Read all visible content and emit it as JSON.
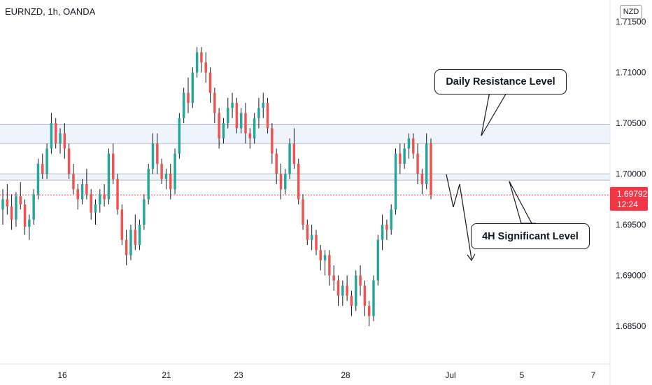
{
  "header": {
    "title": "EURNZD, 1h, OANDA",
    "currency": "NZD"
  },
  "last_price": {
    "value": "1.69792",
    "countdown": "12:24"
  },
  "annotations": {
    "daily_label": "Daily Resistance Level",
    "h4_label": "4H Significant Level"
  },
  "colors": {
    "up": "#26a69a",
    "down": "#ef5350",
    "wick": "#131722",
    "zone_fill": "#eef4fb",
    "zone_line": "#b2b5be",
    "last_price": "#f23645"
  },
  "chart_data": {
    "type": "candlestick",
    "symbol": "EURNZD",
    "timeframe": "1h",
    "y_axis": {
      "ticks": [
        "1.71500",
        "1.71000",
        "1.70500",
        "1.70000",
        "1.69500",
        "1.69000",
        "1.68500"
      ],
      "range": [
        1.681,
        1.717
      ]
    },
    "x_axis": {
      "ticks": [
        "16",
        "21",
        "23",
        "28",
        "Jul",
        "5",
        "7"
      ]
    },
    "zones": [
      {
        "name": "Daily Resistance Level",
        "top": 1.7049,
        "bottom": 1.703
      },
      {
        "name": "4H Significant Level",
        "top": 1.7,
        "bottom": 1.6994
      }
    ],
    "last_price": 1.69792,
    "candles": [
      [
        1.6965,
        1.6985,
        1.695,
        1.6975
      ],
      [
        1.6975,
        1.699,
        1.696,
        1.6968
      ],
      [
        1.6968,
        1.698,
        1.6945,
        1.6955
      ],
      [
        1.6955,
        1.6982,
        1.6948,
        1.6978
      ],
      [
        1.6978,
        1.6992,
        1.6965,
        1.697
      ],
      [
        1.697,
        1.6975,
        1.694,
        1.6948
      ],
      [
        1.6948,
        1.696,
        1.6935,
        1.6955
      ],
      [
        1.6955,
        1.6985,
        1.695,
        1.698
      ],
      [
        1.698,
        1.7015,
        1.6975,
        1.701
      ],
      [
        1.701,
        1.702,
        1.6995,
        1.7
      ],
      [
        1.7,
        1.703,
        1.6995,
        1.7025
      ],
      [
        1.7025,
        1.706,
        1.702,
        1.705
      ],
      [
        1.705,
        1.7055,
        1.7025,
        1.703
      ],
      [
        1.703,
        1.7045,
        1.702,
        1.704
      ],
      [
        1.704,
        1.705,
        1.7015,
        1.7025
      ],
      [
        1.7025,
        1.703,
        1.6995,
        1.7
      ],
      [
        1.7,
        1.701,
        1.698,
        1.6985
      ],
      [
        1.6985,
        1.699,
        1.6965,
        1.6975
      ],
      [
        1.6975,
        1.6995,
        1.697,
        1.699
      ],
      [
        1.699,
        1.7005,
        1.6975,
        1.698
      ],
      [
        1.698,
        1.6985,
        1.6955,
        1.6962
      ],
      [
        1.6962,
        1.6975,
        1.695,
        1.697
      ],
      [
        1.697,
        1.6985,
        1.6962,
        1.698
      ],
      [
        1.698,
        1.699,
        1.6968,
        1.6975
      ],
      [
        1.6975,
        1.7025,
        1.697,
        1.702
      ],
      [
        1.702,
        1.703,
        1.699,
        1.6995
      ],
      [
        1.6995,
        1.7,
        1.696,
        1.6965
      ],
      [
        1.6965,
        1.697,
        1.693,
        1.6935
      ],
      [
        1.6935,
        1.6945,
        1.691,
        1.692
      ],
      [
        1.692,
        1.695,
        1.6915,
        1.6945
      ],
      [
        1.6945,
        1.696,
        1.6925,
        1.693
      ],
      [
        1.693,
        1.6955,
        1.6925,
        1.695
      ],
      [
        1.695,
        1.698,
        1.6945,
        1.6975
      ],
      [
        1.6975,
        1.701,
        1.697,
        1.7005
      ],
      [
        1.7005,
        1.704,
        1.7,
        1.703
      ],
      [
        1.703,
        1.704,
        1.7,
        1.701
      ],
      [
        1.701,
        1.7015,
        1.699,
        1.6995
      ],
      [
        1.6995,
        1.7005,
        1.6985,
        1.7
      ],
      [
        1.7,
        1.701,
        1.6975,
        1.6985
      ],
      [
        1.6985,
        1.7025,
        1.698,
        1.702
      ],
      [
        1.702,
        1.706,
        1.7015,
        1.7055
      ],
      [
        1.7055,
        1.7085,
        1.705,
        1.708
      ],
      [
        1.708,
        1.7095,
        1.706,
        1.707
      ],
      [
        1.707,
        1.7105,
        1.7065,
        1.71
      ],
      [
        1.71,
        1.7125,
        1.7095,
        1.712
      ],
      [
        1.712,
        1.7125,
        1.71,
        1.711
      ],
      [
        1.711,
        1.712,
        1.709,
        1.71
      ],
      [
        1.71,
        1.7105,
        1.707,
        1.708
      ],
      [
        1.708,
        1.7085,
        1.705,
        1.706
      ],
      [
        1.706,
        1.7065,
        1.7025,
        1.7035
      ],
      [
        1.7035,
        1.7055,
        1.703,
        1.705
      ],
      [
        1.705,
        1.7075,
        1.7045,
        1.7065
      ],
      [
        1.7065,
        1.708,
        1.7055,
        1.707
      ],
      [
        1.707,
        1.7075,
        1.704,
        1.7045
      ],
      [
        1.7045,
        1.7065,
        1.704,
        1.706
      ],
      [
        1.706,
        1.707,
        1.703,
        1.704
      ],
      [
        1.704,
        1.7045,
        1.7025,
        1.7035
      ],
      [
        1.7035,
        1.706,
        1.703,
        1.7055
      ],
      [
        1.7055,
        1.7075,
        1.7045,
        1.7065
      ],
      [
        1.7065,
        1.708,
        1.7055,
        1.707
      ],
      [
        1.707,
        1.7075,
        1.704,
        1.7045
      ],
      [
        1.7045,
        1.705,
        1.701,
        1.702
      ],
      [
        1.702,
        1.7025,
        1.699,
        1.7
      ],
      [
        1.7,
        1.701,
        1.6975,
        1.6985
      ],
      [
        1.6985,
        1.7005,
        1.698,
        1.7
      ],
      [
        1.7,
        1.7035,
        1.6995,
        1.703
      ],
      [
        1.703,
        1.7045,
        1.7005,
        1.701
      ],
      [
        1.701,
        1.7015,
        1.697,
        1.6975
      ],
      [
        1.6975,
        1.698,
        1.6945,
        1.695
      ],
      [
        1.695,
        1.6955,
        1.693,
        1.6935
      ],
      [
        1.6935,
        1.695,
        1.6925,
        1.694
      ],
      [
        1.694,
        1.6945,
        1.692,
        1.6925
      ],
      [
        1.6925,
        1.693,
        1.6905,
        1.6915
      ],
      [
        1.6915,
        1.6925,
        1.69,
        1.692
      ],
      [
        1.692,
        1.6925,
        1.689,
        1.69
      ],
      [
        1.69,
        1.691,
        1.6885,
        1.6895
      ],
      [
        1.6895,
        1.69,
        1.687,
        1.688
      ],
      [
        1.688,
        1.6895,
        1.687,
        1.689
      ],
      [
        1.689,
        1.69,
        1.6875,
        1.688
      ],
      [
        1.688,
        1.6885,
        1.686,
        1.687
      ],
      [
        1.687,
        1.6905,
        1.6865,
        1.69
      ],
      [
        1.69,
        1.691,
        1.688,
        1.689
      ],
      [
        1.689,
        1.6895,
        1.686,
        1.687
      ],
      [
        1.687,
        1.6875,
        1.685,
        1.686
      ],
      [
        1.686,
        1.69,
        1.6855,
        1.6895
      ],
      [
        1.6895,
        1.694,
        1.689,
        1.6935
      ],
      [
        1.6935,
        1.696,
        1.6925,
        1.695
      ],
      [
        1.695,
        1.6955,
        1.6935,
        1.6945
      ],
      [
        1.6945,
        1.697,
        1.694,
        1.6965
      ],
      [
        1.6965,
        1.7025,
        1.696,
        1.702
      ],
      [
        1.702,
        1.703,
        1.7,
        1.701
      ],
      [
        1.701,
        1.703,
        1.7005,
        1.7025
      ],
      [
        1.7025,
        1.704,
        1.7015,
        1.7035
      ],
      [
        1.7035,
        1.704,
        1.7015,
        1.702
      ],
      [
        1.702,
        1.703,
        1.699,
        1.7
      ],
      [
        1.7,
        1.7005,
        1.698,
        1.699
      ],
      [
        1.699,
        1.704,
        1.6985,
        1.703
      ],
      [
        1.703,
        1.7035,
        1.6975,
        1.6979
      ]
    ]
  }
}
